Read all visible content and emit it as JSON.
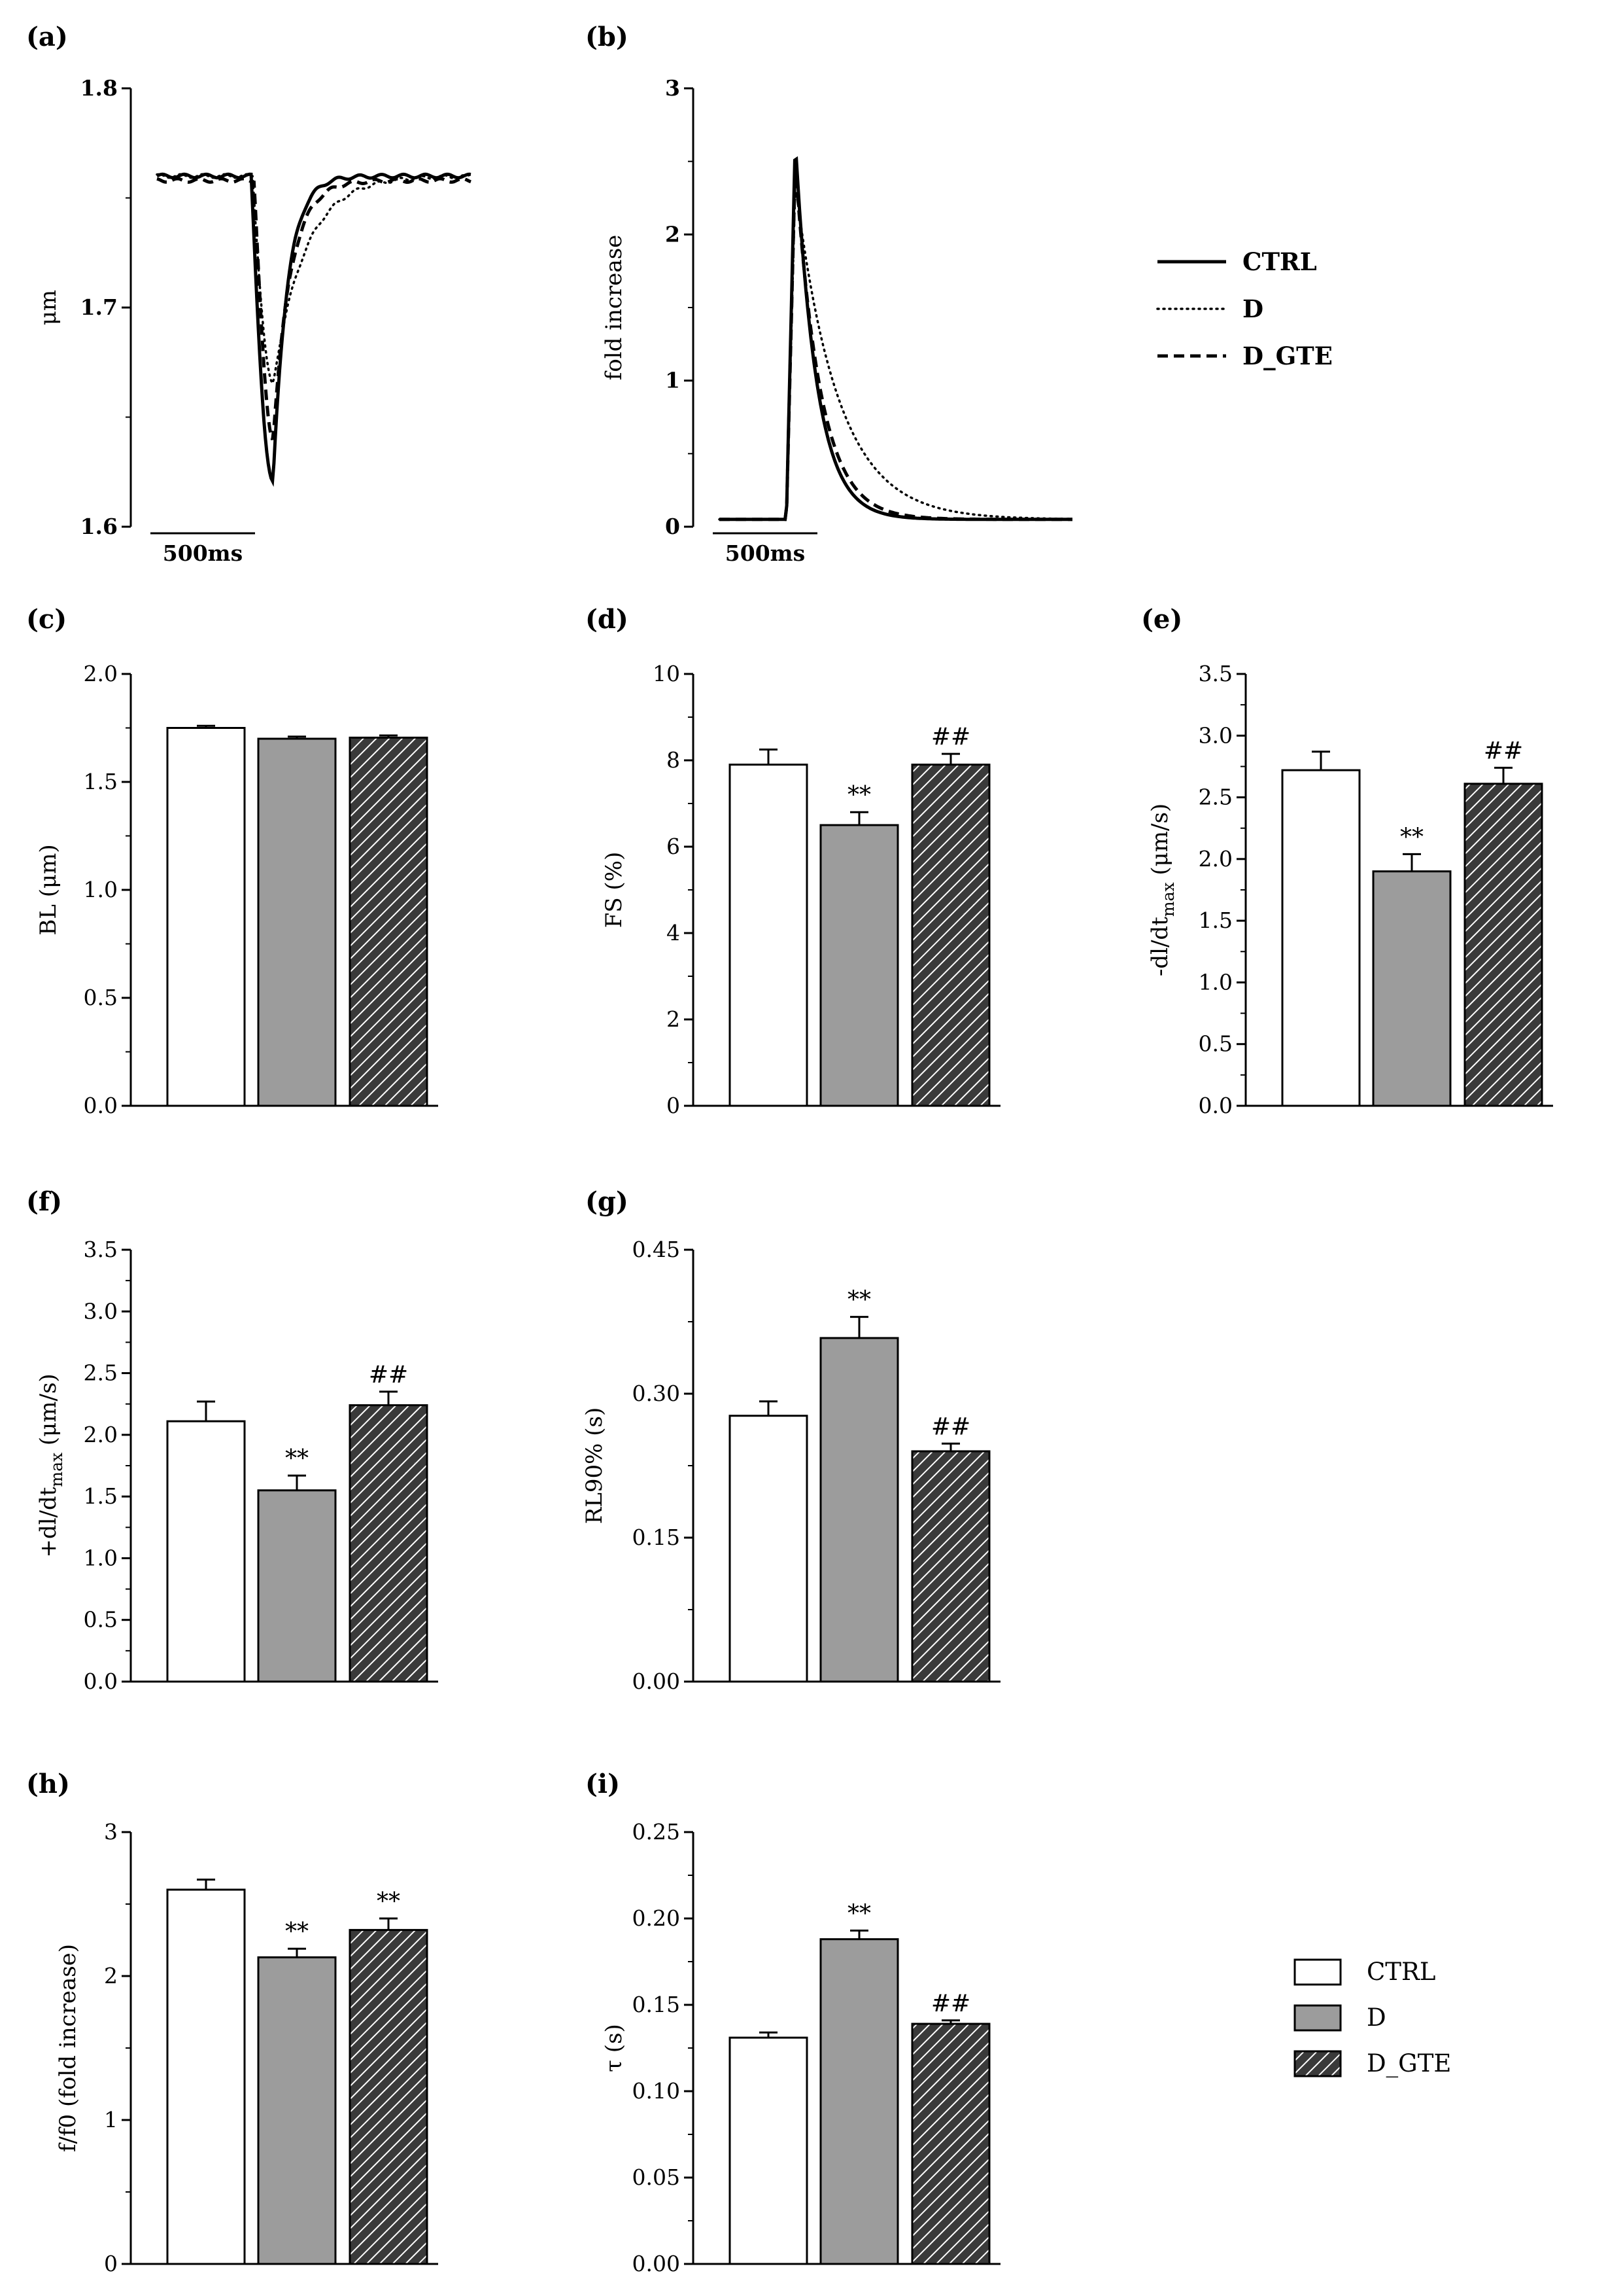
{
  "figure": {
    "legend_lines": [
      {
        "name": "CTRL",
        "style": "solid"
      },
      {
        "name": "D",
        "style": "dotted"
      },
      {
        "name": "D_GTE",
        "style": "dashed"
      }
    ],
    "legend_bars": [
      {
        "name": "CTRL",
        "fill": "white"
      },
      {
        "name": "D",
        "fill": "grey"
      },
      {
        "name": "D_GTE",
        "fill": "hatch"
      }
    ]
  },
  "chart_data": [
    {
      "panel": "(a)",
      "type": "line",
      "ylabel": "μm",
      "ylim": [
        1.6,
        1.8
      ],
      "yticks": [
        "1.6",
        "1.7",
        "1.8"
      ],
      "scalebar": "500ms",
      "series": [
        {
          "name": "CTRL",
          "baseline": 1.76,
          "minimum": 1.62
        },
        {
          "name": "D",
          "baseline": 1.76,
          "minimum": 1.665
        },
        {
          "name": "D_GTE",
          "baseline": 1.758,
          "minimum": 1.64
        }
      ]
    },
    {
      "panel": "(b)",
      "type": "line",
      "ylabel": "fold increase",
      "ylim": [
        0,
        3
      ],
      "yticks": [
        "0",
        "1",
        "2",
        "3"
      ],
      "scalebar": "500ms",
      "series": [
        {
          "name": "CTRL",
          "baseline": 0.05,
          "peak": 2.65
        },
        {
          "name": "D",
          "baseline": 0.05,
          "peak": 2.35
        },
        {
          "name": "D_GTE",
          "baseline": 0.05,
          "peak": 2.5
        }
      ]
    },
    {
      "panel": "(c)",
      "type": "bar",
      "ylabel": "BL (μm)",
      "ylim": [
        0,
        2.0
      ],
      "yticks": [
        "0.0",
        "0.5",
        "1.0",
        "1.5",
        "2.0"
      ],
      "categories": [
        "CTRL",
        "D",
        "D_GTE"
      ],
      "values": [
        1.75,
        1.7,
        1.705
      ],
      "errors": [
        0.01,
        0.01,
        0.01
      ],
      "annotations": [
        "",
        "",
        ""
      ]
    },
    {
      "panel": "(d)",
      "type": "bar",
      "ylabel": "FS (%)",
      "ylim": [
        0,
        10
      ],
      "yticks": [
        "0",
        "2",
        "4",
        "6",
        "8",
        "10"
      ],
      "categories": [
        "CTRL",
        "D",
        "D_GTE"
      ],
      "values": [
        7.9,
        6.5,
        7.9
      ],
      "errors": [
        0.35,
        0.3,
        0.25
      ],
      "annotations": [
        "",
        "**",
        "##"
      ]
    },
    {
      "panel": "(e)",
      "type": "bar",
      "ylabel": "-dl/dt",
      "ylabel_sub": "max",
      "ylabel_unit": " (μm/s)",
      "ylim": [
        0,
        3.5
      ],
      "yticks": [
        "0.0",
        "0.5",
        "1.0",
        "1.5",
        "2.0",
        "2.5",
        "3.0",
        "3.5"
      ],
      "categories": [
        "CTRL",
        "D",
        "D_GTE"
      ],
      "values": [
        2.72,
        1.9,
        2.61
      ],
      "errors": [
        0.15,
        0.14,
        0.13
      ],
      "annotations": [
        "",
        "**",
        "##"
      ]
    },
    {
      "panel": "(f)",
      "type": "bar",
      "ylabel": "+dl/dt",
      "ylabel_sub": "max",
      "ylabel_unit": " (μm/s)",
      "ylim": [
        0,
        3.5
      ],
      "yticks": [
        "0.0",
        "0.5",
        "1.0",
        "1.5",
        "2.0",
        "2.5",
        "3.0",
        "3.5"
      ],
      "categories": [
        "CTRL",
        "D",
        "D_GTE"
      ],
      "values": [
        2.11,
        1.55,
        2.24
      ],
      "errors": [
        0.16,
        0.12,
        0.11
      ],
      "annotations": [
        "",
        "**",
        "##"
      ]
    },
    {
      "panel": "(g)",
      "type": "bar",
      "ylabel": "RL90% (s)",
      "ylim": [
        0,
        0.45
      ],
      "yticks": [
        "0.00",
        "0.15",
        "0.30",
        "0.45"
      ],
      "categories": [
        "CTRL",
        "D",
        "D_GTE"
      ],
      "values": [
        0.277,
        0.358,
        0.24
      ],
      "errors": [
        0.015,
        0.022,
        0.008
      ],
      "annotations": [
        "",
        "**",
        "##"
      ]
    },
    {
      "panel": "(h)",
      "type": "bar",
      "ylabel": "f/f0 (fold increase)",
      "ylim": [
        0,
        3
      ],
      "yticks": [
        "0",
        "1",
        "2",
        "3"
      ],
      "categories": [
        "CTRL",
        "D",
        "D_GTE"
      ],
      "values": [
        2.6,
        2.13,
        2.32
      ],
      "errors": [
        0.07,
        0.06,
        0.08
      ],
      "annotations": [
        "",
        "**",
        "**"
      ]
    },
    {
      "panel": "(i)",
      "type": "bar",
      "ylabel": "τ (s)",
      "ylim": [
        0,
        0.25
      ],
      "yticks": [
        "0.00",
        "0.05",
        "0.10",
        "0.15",
        "0.20",
        "0.25"
      ],
      "categories": [
        "CTRL",
        "D",
        "D_GTE"
      ],
      "values": [
        0.131,
        0.188,
        0.139
      ],
      "errors": [
        0.003,
        0.005,
        0.002
      ],
      "annotations": [
        "",
        "**",
        "##"
      ]
    }
  ]
}
